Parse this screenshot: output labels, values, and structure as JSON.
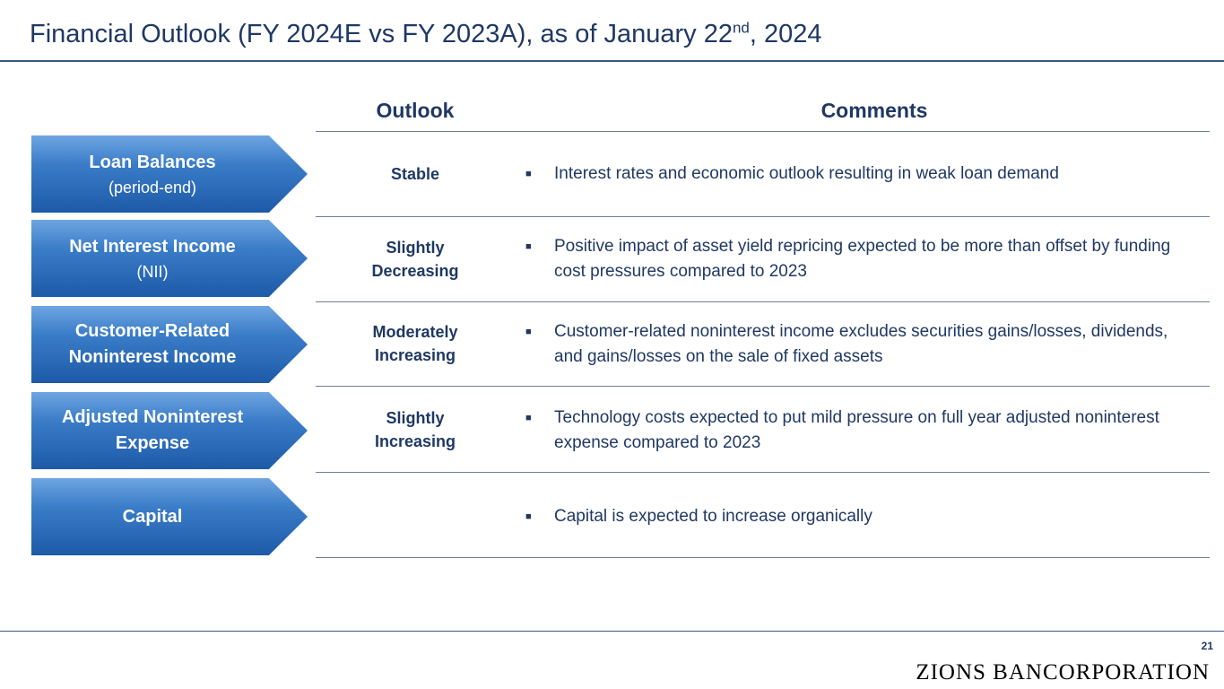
{
  "title": {
    "main": "Financial Outlook (FY 2024E vs FY 2023A), as of January 22",
    "superscript": "nd",
    "suffix": ", 2024"
  },
  "headers": {
    "outlook": "Outlook",
    "comments": "Comments"
  },
  "rows": [
    {
      "label_main": "Loan Balances",
      "label_sub": "(period-end)",
      "outlook": "Stable",
      "comment": "Interest rates and economic outlook resulting in weak loan demand"
    },
    {
      "label_main": "Net Interest Income",
      "label_sub": "(NII)",
      "outlook": "Slightly Decreasing",
      "comment": "Positive impact of asset yield repricing expected to be more than offset by funding cost pressures compared to 2023"
    },
    {
      "label_main": "Customer-Related Noninterest Income",
      "label_sub": "",
      "outlook": "Moderately Increasing",
      "comment": "Customer-related noninterest income excludes securities gains/losses, dividends, and gains/losses on the sale of fixed assets"
    },
    {
      "label_main": "Adjusted Noninterest Expense",
      "label_sub": "",
      "outlook": "Slightly Increasing",
      "comment": "Technology costs expected to put mild pressure on full year adjusted noninterest expense compared to 2023"
    },
    {
      "label_main": "Capital",
      "label_sub": "",
      "outlook": "",
      "comment": "Capital is expected to increase organically"
    }
  ],
  "bullet_icon": "square-bullet-icon",
  "footer": {
    "page_number": "21",
    "logo_text": "ZIONS BANCORPORATION"
  },
  "colors": {
    "text_navy": "#1f3864",
    "arrow_blue": "#3a7cc7"
  }
}
